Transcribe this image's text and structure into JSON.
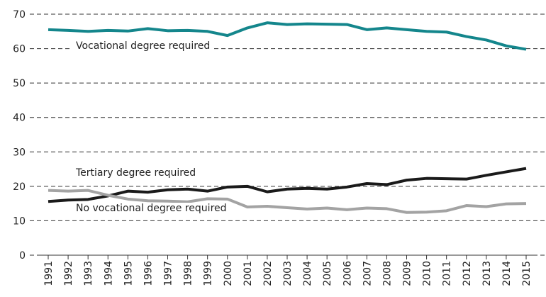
{
  "chart_data": {
    "type": "line",
    "x": [
      "1991",
      "1992",
      "1993",
      "1994",
      "1995",
      "1996",
      "1997",
      "1998",
      "1999",
      "2000",
      "2001",
      "2002",
      "2003",
      "2004",
      "2005",
      "2006",
      "2007",
      "2008",
      "2009",
      "2010",
      "2011",
      "2012",
      "2013",
      "2014",
      "2015"
    ],
    "series": [
      {
        "name": "Vocational degree required",
        "color": "#14868c",
        "values": [
          65.5,
          65.3,
          65.0,
          65.3,
          65.1,
          65.8,
          65.2,
          65.3,
          65.0,
          63.8,
          66.0,
          67.5,
          67.0,
          67.2,
          67.1,
          67.0,
          65.5,
          66.0,
          65.5,
          65.0,
          64.8,
          63.5,
          62.5,
          60.8,
          59.8
        ]
      },
      {
        "name": "Tertiary degree required",
        "color": "#1a1a1a",
        "values": [
          15.6,
          16.0,
          16.2,
          17.2,
          18.6,
          18.3,
          19.0,
          19.2,
          18.6,
          19.8,
          20.0,
          18.4,
          19.2,
          19.4,
          19.2,
          19.8,
          20.8,
          20.5,
          21.8,
          22.3,
          22.2,
          22.1,
          23.2,
          24.2,
          25.2
        ]
      },
      {
        "name": "No vocational degree required",
        "color": "#a3a3a3",
        "values": [
          18.8,
          18.6,
          18.8,
          17.4,
          16.3,
          15.8,
          15.7,
          15.5,
          16.4,
          16.3,
          14.0,
          14.2,
          13.8,
          13.4,
          13.7,
          13.2,
          13.7,
          13.5,
          12.4,
          12.5,
          12.9,
          14.4,
          14.1,
          14.9,
          15.0
        ]
      }
    ],
    "ylim": [
      0,
      70
    ],
    "yticks": [
      0,
      10,
      20,
      30,
      40,
      50,
      60,
      70
    ],
    "grid": true
  }
}
